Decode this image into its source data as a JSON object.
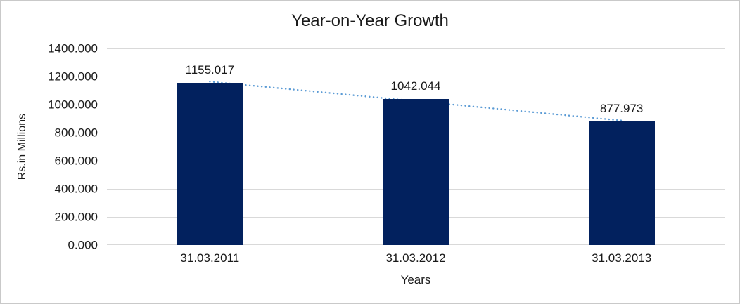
{
  "chart_data": {
    "type": "bar",
    "title": "Year-on-Year Growth",
    "xlabel": "Years",
    "ylabel": "Rs.in Millions",
    "categories": [
      "31.03.2011",
      "31.03.2012",
      "31.03.2013"
    ],
    "values": [
      1155.017,
      1042.044,
      877.973
    ],
    "data_labels": [
      "1155.017",
      "1042.044",
      "877.973"
    ],
    "ylim": [
      0,
      1400
    ],
    "ytick_step": 200,
    "ytick_labels": [
      "0.000",
      "200.000",
      "400.000",
      "600.000",
      "800.000",
      "1000.000",
      "1200.000",
      "1400.000"
    ],
    "grid": true,
    "legend": "none",
    "trendline": {
      "type": "linear",
      "style": "dotted"
    },
    "colors": {
      "bar": "#02215e",
      "trendline": "#5b9bd5",
      "gridline": "#d9d9d9",
      "text": "#1a1a1a",
      "border": "#c9c9c9",
      "background": "#ffffff"
    }
  }
}
